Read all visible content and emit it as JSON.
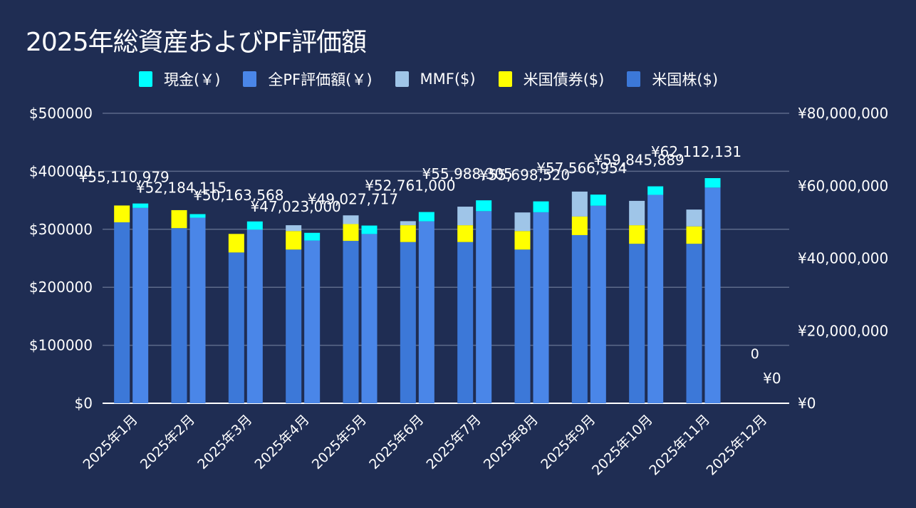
{
  "chart_data": {
    "type": "bar",
    "title": "2025年総資産およびPF評価額",
    "categories": [
      "2025年1月",
      "2025年2月",
      "2025年3月",
      "2025年4月",
      "2025年5月",
      "2025年6月",
      "2025年7月",
      "2025年8月",
      "2025年9月",
      "2025年10月",
      "2025年11月",
      "2025年12月"
    ],
    "left_axis": {
      "ylim": [
        0,
        500000
      ],
      "ticks": [
        "$0",
        "$100000",
        "$200000",
        "$300000",
        "$400000",
        "$500000"
      ],
      "tick_values": [
        0,
        100000,
        200000,
        300000,
        400000,
        500000
      ]
    },
    "right_axis": {
      "ylim": [
        0,
        80000000
      ],
      "ticks": [
        "¥0",
        "¥20,000,000",
        "¥40,000,000",
        "¥60,000,000",
        "¥80,000,000"
      ],
      "tick_values": [
        0,
        20000000,
        40000000,
        60000000,
        80000000
      ]
    },
    "grid": true,
    "legend_position": "top",
    "legend": [
      {
        "name": "現金(￥)",
        "color": "#00ffff"
      },
      {
        "name": "全PF評価額(￥)",
        "color": "#4a86e8"
      },
      {
        "name": "MMF($)",
        "color": "#9fc5e8"
      },
      {
        "name": "米国債券($)",
        "color": "#ffff00"
      },
      {
        "name": "米国株($)",
        "color": "#3c78d8"
      }
    ],
    "usd_stack": {
      "axis": "left",
      "series": [
        {
          "name": "米国株($)",
          "color": "#3c78d8",
          "values": [
            312000,
            302000,
            260000,
            265000,
            280000,
            278000,
            278000,
            265000,
            290000,
            275000,
            275000,
            0
          ]
        },
        {
          "name": "米国債券($)",
          "color": "#ffff00",
          "values": [
            29000,
            31000,
            32000,
            32000,
            29000,
            29000,
            29000,
            32000,
            32000,
            32000,
            30000,
            0
          ]
        },
        {
          "name": "MMF($)",
          "color": "#9fc5e8",
          "values": [
            0,
            0,
            0,
            10000,
            15000,
            7000,
            32000,
            32000,
            43000,
            42000,
            29000,
            0
          ]
        }
      ]
    },
    "jpy_stack": {
      "axis": "right",
      "series": [
        {
          "name": "全PF評価額(￥)",
          "color": "#4a86e8",
          "values": [
            53900000,
            51200000,
            47900000,
            44900000,
            46700000,
            50200000,
            53000000,
            52700000,
            54500000,
            57500000,
            59500000,
            0
          ]
        },
        {
          "name": "現金(￥)",
          "color": "#00ffff",
          "values": [
            1210979,
            984115,
            2263568,
            2123000,
            2327717,
            2561000,
            2988305,
            2998520,
            3066954,
            2345889,
            2612131,
            0
          ]
        }
      ],
      "total_labels": [
        "¥55,110,979",
        "¥52,184,115",
        "¥50,163,568",
        "¥47,023,000",
        "¥49,027,717",
        "¥52,761,000",
        "¥55,988,305",
        "¥55,698,520",
        "¥57,566,954",
        "¥59,845,889",
        "¥62,112,131",
        "¥0"
      ],
      "totals": [
        55110979,
        52184115,
        50163568,
        47023000,
        49027717,
        52761000,
        55988305,
        55698520,
        57566954,
        59845889,
        62112131,
        0
      ]
    },
    "extra_labels": {
      "dec_usd_total": "0"
    }
  }
}
